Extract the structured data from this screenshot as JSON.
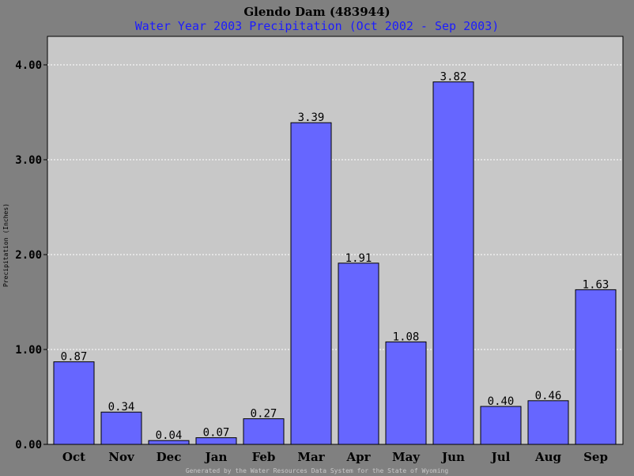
{
  "chart_data": {
    "type": "bar",
    "title": "Glendo Dam (483944)",
    "subtitle": "Water Year 2003 Precipitation (Oct 2002 - Sep 2003)",
    "ylabel": "Precipitation (Inches)",
    "xlabel": "",
    "categories": [
      "Oct",
      "Nov",
      "Dec",
      "Jan",
      "Feb",
      "Mar",
      "Apr",
      "May",
      "Jun",
      "Jul",
      "Aug",
      "Sep"
    ],
    "values": [
      0.87,
      0.34,
      0.04,
      0.07,
      0.27,
      3.39,
      1.91,
      1.08,
      3.82,
      0.4,
      0.46,
      1.63
    ],
    "value_labels": [
      "0.87",
      "0.34",
      "0.04",
      "0.07",
      "0.27",
      "3.39",
      "1.91",
      "1.08",
      "3.82",
      "0.40",
      "0.46",
      "1.63"
    ],
    "ylim": [
      0,
      4.0
    ],
    "yticks": [
      0,
      1,
      2,
      3,
      4
    ],
    "ytick_labels": [
      "0.00",
      "1.00",
      "2.00",
      "3.00",
      "4.00"
    ],
    "grid": true,
    "legend": "none",
    "colors": {
      "background": "#808080",
      "plot_area": "#c8c8c8",
      "bar": "#6666ff",
      "bar_outline": "#000000",
      "grid": "#ffffff",
      "subtitle": "#1c1cff",
      "footer": "#c8c8c8"
    }
  },
  "footer": "Generated by the Water Resources Data System for the State of Wyoming"
}
